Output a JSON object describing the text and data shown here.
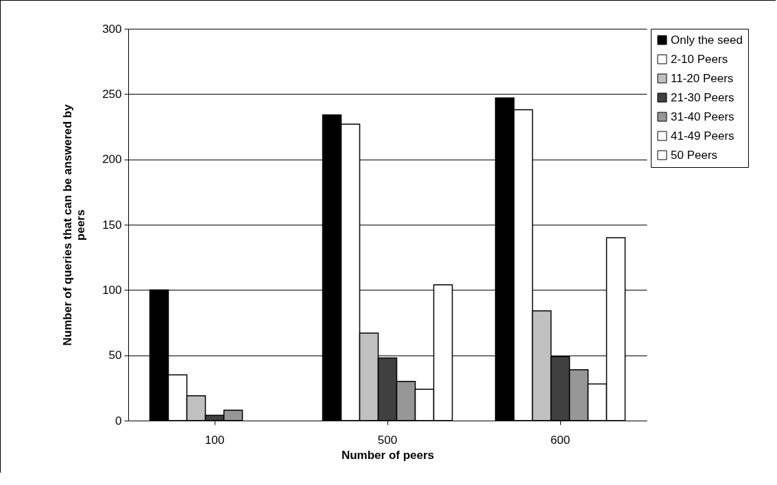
{
  "chart_data": {
    "type": "bar",
    "xlabel": "Number of peers",
    "ylabel": "Number of queries that can be answered by peers",
    "categories": [
      "100",
      "500",
      "600"
    ],
    "series": [
      {
        "name": "Only the seed",
        "color": "#000000",
        "values": [
          100,
          234,
          247
        ]
      },
      {
        "name": "2-10 Peers",
        "color": "#ffffff",
        "values": [
          35,
          227,
          238
        ]
      },
      {
        "name": "11-20 Peers",
        "color": "#c0c0c0",
        "values": [
          19,
          67,
          84
        ]
      },
      {
        "name": "21-30 Peers",
        "color": "#404040",
        "values": [
          4,
          48,
          49
        ]
      },
      {
        "name": "31-40 Peers",
        "color": "#969696",
        "values": [
          8,
          30,
          39
        ]
      },
      {
        "name": "41-49 Peers",
        "color": "#ffffff",
        "values": [
          0,
          24,
          28
        ]
      },
      {
        "name": "50 Peers",
        "color": "#ffffff",
        "values": [
          0,
          104,
          140
        ]
      }
    ],
    "ylim": [
      0,
      300
    ],
    "yticks": [
      0,
      50,
      100,
      150,
      200,
      250,
      300
    ],
    "grid": "y",
    "legend": "right"
  }
}
